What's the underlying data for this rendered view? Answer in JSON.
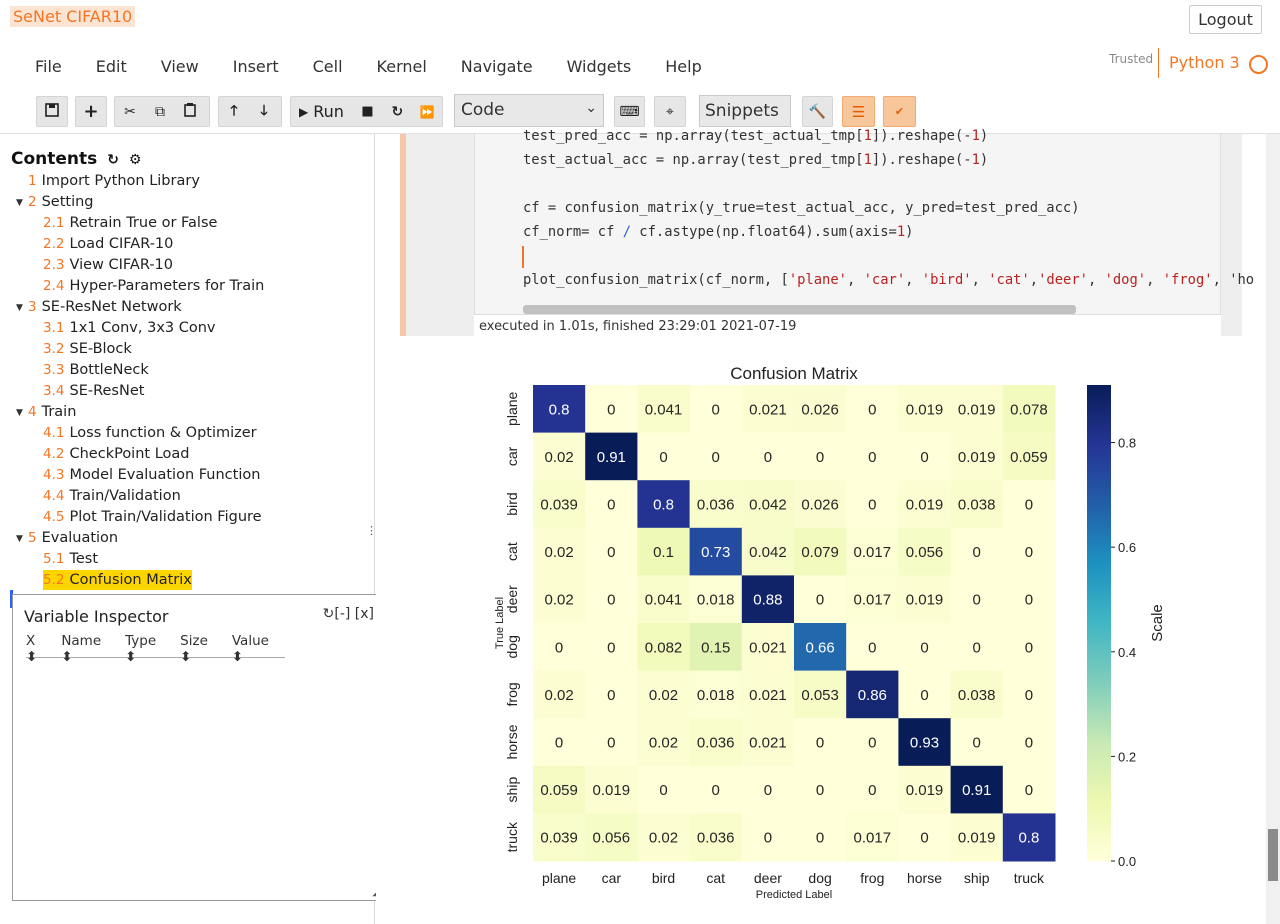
{
  "header": {
    "notebook_title": "SeNet CIFAR10",
    "logout_label": "Logout",
    "menu": [
      "File",
      "Edit",
      "View",
      "Insert",
      "Cell",
      "Kernel",
      "Navigate",
      "Widgets",
      "Help"
    ],
    "trusted_label": "Trusted",
    "kernel_name": "Python 3"
  },
  "toolbar": {
    "run_label": "Run",
    "cell_type": "Code",
    "snippets_label": "Snippets"
  },
  "sidebar": {
    "toc_title": "Contents",
    "items": [
      {
        "num": "1",
        "label": "Import Python Library"
      },
      {
        "num": "2",
        "label": "Setting"
      },
      {
        "num": "2.1",
        "label": "Retrain True or False"
      },
      {
        "num": "2.2",
        "label": "Load CIFAR-10"
      },
      {
        "num": "2.3",
        "label": "View CIFAR-10"
      },
      {
        "num": "2.4",
        "label": "Hyper-Parameters for Train"
      },
      {
        "num": "3",
        "label": "SE-ResNet Network"
      },
      {
        "num": "3.1",
        "label": "1x1 Conv, 3x3 Conv"
      },
      {
        "num": "3.2",
        "label": "SE-Block"
      },
      {
        "num": "3.3",
        "label": "BottleNeck"
      },
      {
        "num": "3.4",
        "label": "SE-ResNet"
      },
      {
        "num": "4",
        "label": "Train"
      },
      {
        "num": "4.1",
        "label": "Loss function & Optimizer"
      },
      {
        "num": "4.2",
        "label": "CheckPoint Load"
      },
      {
        "num": "4.3",
        "label": "Model Evaluation Function"
      },
      {
        "num": "4.4",
        "label": "Train/Validation"
      },
      {
        "num": "4.5",
        "label": "Plot Train/Validation Figure"
      },
      {
        "num": "5",
        "label": "Evaluation"
      },
      {
        "num": "5.1",
        "label": "Test"
      },
      {
        "num": "5.2",
        "label": "Confusion Matrix"
      }
    ],
    "variable_inspector": {
      "title": "Variable Inspector",
      "controls": "↻[-] [x]",
      "columns": [
        "X",
        "Name",
        "Type",
        "Size",
        "Value"
      ]
    }
  },
  "cell": {
    "code_lines": [
      "test_pred_acc = np.array(test_actual_tmp[1]).reshape(-1)",
      "test_actual_acc = np.array(test_pred_tmp[1]).reshape(-1)",
      "",
      "cf = confusion_matrix(y_true=test_actual_acc, y_pred=test_pred_acc)",
      "cf_norm= cf / cf.astype(np.float64).sum(axis=1)",
      "",
      "plot_confusion_matrix(cf_norm, ['plane', 'car', 'bird', 'cat','deer', 'dog', 'frog', 'ho"
    ],
    "exec_info": "executed in 1.01s, finished 23:29:01 2021-07-19"
  },
  "chart_data": {
    "type": "heatmap",
    "title": "Confusion Matrix",
    "xlabel": "Predicted Label",
    "ylabel": "True Label",
    "colorbar_label": "Scale",
    "colorbar_ticks": [
      "0.0",
      "0.2",
      "0.4",
      "0.6",
      "0.8"
    ],
    "colorbar_range": [
      0,
      0.91
    ],
    "colormap": "YlGnBu",
    "categories": [
      "plane",
      "car",
      "bird",
      "cat",
      "deer",
      "dog",
      "frog",
      "horse",
      "ship",
      "truck"
    ],
    "values": [
      [
        0.8,
        0,
        0.041,
        0,
        0.021,
        0.026,
        0,
        0.019,
        0.019,
        0.078
      ],
      [
        0.02,
        0.91,
        0,
        0,
        0,
        0,
        0,
        0,
        0.019,
        0.059
      ],
      [
        0.039,
        0,
        0.8,
        0.036,
        0.042,
        0.026,
        0,
        0.019,
        0.038,
        0
      ],
      [
        0.02,
        0,
        0.1,
        0.73,
        0.042,
        0.079,
        0.017,
        0.056,
        0,
        0
      ],
      [
        0.02,
        0,
        0.041,
        0.018,
        0.88,
        0,
        0.017,
        0.019,
        0,
        0
      ],
      [
        0,
        0,
        0.082,
        0.15,
        0.021,
        0.66,
        0,
        0,
        0,
        0
      ],
      [
        0.02,
        0,
        0.02,
        0.018,
        0.021,
        0.053,
        0.86,
        0,
        0.038,
        0
      ],
      [
        0,
        0,
        0.02,
        0.036,
        0.021,
        0,
        0,
        0.93,
        0,
        0
      ],
      [
        0.059,
        0.019,
        0,
        0,
        0,
        0,
        0,
        0.019,
        0.91,
        0
      ],
      [
        0.039,
        0.056,
        0.02,
        0.036,
        0,
        0,
        0.017,
        0,
        0.019,
        0.8
      ]
    ],
    "value_labels": [
      [
        "0.8",
        "0",
        "0.041",
        "0",
        "0.021",
        "0.026",
        "0",
        "0.019",
        "0.019",
        "0.078"
      ],
      [
        "0.02",
        "0.91",
        "0",
        "0",
        "0",
        "0",
        "0",
        "0",
        "0.019",
        "0.059"
      ],
      [
        "0.039",
        "0",
        "0.8",
        "0.036",
        "0.042",
        "0.026",
        "0",
        "0.019",
        "0.038",
        "0"
      ],
      [
        "0.02",
        "0",
        "0.1",
        "0.73",
        "0.042",
        "0.079",
        "0.017",
        "0.056",
        "0",
        "0"
      ],
      [
        "0.02",
        "0",
        "0.041",
        "0.018",
        "0.88",
        "0",
        "0.017",
        "0.019",
        "0",
        "0"
      ],
      [
        "0",
        "0",
        "0.082",
        "0.15",
        "0.021",
        "0.66",
        "0",
        "0",
        "0",
        "0"
      ],
      [
        "0.02",
        "0",
        "0.02",
        "0.018",
        "0.021",
        "0.053",
        "0.86",
        "0",
        "0.038",
        "0"
      ],
      [
        "0",
        "0",
        "0.02",
        "0.036",
        "0.021",
        "0",
        "0",
        "0.93",
        "0",
        "0"
      ],
      [
        "0.059",
        "0.019",
        "0",
        "0",
        "0",
        "0",
        "0",
        "0.019",
        "0.91",
        "0"
      ],
      [
        "0.039",
        "0.056",
        "0.02",
        "0.036",
        "0",
        "0",
        "0.017",
        "0",
        "0.019",
        "0.8"
      ]
    ]
  },
  "colors": {
    "accent": "#f37626",
    "highlight": "#ffd500"
  },
  "icons": [
    "save-icon",
    "plus-icon",
    "cut-icon",
    "copy-icon",
    "paste-icon",
    "arrow-up-icon",
    "arrow-down-icon",
    "run-icon",
    "stop-icon",
    "restart-icon",
    "fast-forward-icon",
    "keyboard-icon",
    "crosshair-icon",
    "hammer-icon",
    "list-icon",
    "spellcheck-icon"
  ]
}
